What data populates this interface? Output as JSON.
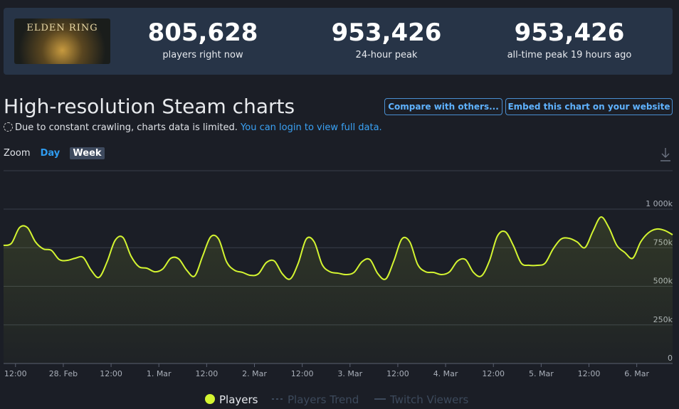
{
  "header": {
    "game_logo": "ELDEN RING",
    "stats": [
      {
        "value": "805,628",
        "label": "players right now"
      },
      {
        "value": "953,426",
        "label": "24-hour peak"
      },
      {
        "value": "953,426",
        "label": "all-time peak 19 hours ago"
      }
    ]
  },
  "section": {
    "title": "High-resolution Steam charts",
    "buttons": [
      "Compare with others...",
      "Embed this chart on your website"
    ],
    "notice": "Due to constant crawling, charts data is limited.",
    "notice_link": "You can login to view full data.",
    "zoom_label": "Zoom",
    "zoom_options": [
      "Day",
      "Week"
    ]
  },
  "chart_data": {
    "type": "line",
    "ylim": [
      0,
      1000000
    ],
    "yticks": [
      {
        "value": 0,
        "label": "0"
      },
      {
        "value": 250000,
        "label": "250k"
      },
      {
        "value": 500000,
        "label": "500k"
      },
      {
        "value": 750000,
        "label": "750k"
      },
      {
        "value": 1000000,
        "label": "1 000k"
      }
    ],
    "xtick_labels": [
      "12:00",
      "28. Feb",
      "12:00",
      "1. Mar",
      "12:00",
      "2. Mar",
      "12:00",
      "3. Mar",
      "12:00",
      "4. Mar",
      "12:00",
      "5. Mar",
      "12:00",
      "6. Mar"
    ],
    "grid": true,
    "series": [
      {
        "name": "Players",
        "color": "#d4f531",
        "values": [
          765000,
          779000,
          880000,
          880000,
          788000,
          742000,
          733000,
          673000,
          668000,
          682000,
          687000,
          604000,
          558000,
          659000,
          797000,
          816000,
          696000,
          627000,
          617000,
          594000,
          613000,
          682000,
          677000,
          604000,
          567000,
          696000,
          820000,
          806000,
          659000,
          604000,
          590000,
          571000,
          581000,
          654000,
          664000,
          581000,
          548000,
          650000,
          806000,
          788000,
          641000,
          594000,
          585000,
          576000,
          590000,
          659000,
          673000,
          581000,
          548000,
          664000,
          806000,
          788000,
          641000,
          594000,
          590000,
          576000,
          594000,
          664000,
          673000,
          590000,
          567000,
          664000,
          825000,
          853000,
          765000,
          650000,
          636000,
          636000,
          650000,
          742000,
          806000,
          811000,
          788000,
          751000,
          857000,
          949000,
          880000,
          765000,
          719000,
          682000,
          788000,
          848000,
          871000,
          862000,
          834000
        ]
      },
      {
        "name": "Players Trend",
        "color": "#3d4a5c",
        "values": []
      },
      {
        "name": "Twitch Viewers",
        "color": "#3d4a5c",
        "values": []
      }
    ]
  }
}
